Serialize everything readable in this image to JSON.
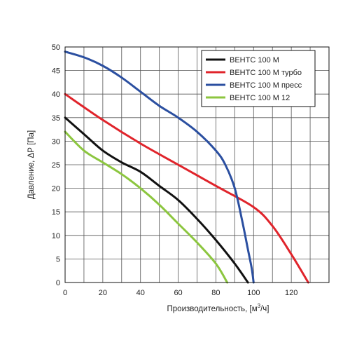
{
  "chart_data": {
    "type": "line",
    "xlabel": "Производительность, [м",
    "xlabel_sup": "3",
    "xlabel_tail": "/ч]",
    "ylabel": "Давление, ΔР [Па]",
    "xlim": [
      0,
      140
    ],
    "ylim": [
      0,
      50
    ],
    "x_ticks": [
      "0",
      "20",
      "40",
      "60",
      "80",
      "100",
      "120"
    ],
    "y_ticks": [
      "0",
      "5",
      "10",
      "15",
      "20",
      "25",
      "30",
      "35",
      "40",
      "45",
      "50"
    ],
    "grid": true,
    "legend_position": "top-right",
    "series": [
      {
        "name": "ВЕНТС 100 М",
        "color": "#111111",
        "points": [
          [
            0,
            35
          ],
          [
            10,
            31.5
          ],
          [
            20,
            28
          ],
          [
            30,
            25.5
          ],
          [
            40,
            23.5
          ],
          [
            50,
            20.5
          ],
          [
            60,
            17.5
          ],
          [
            70,
            13.5
          ],
          [
            80,
            9
          ],
          [
            90,
            4
          ],
          [
            97,
            0
          ]
        ]
      },
      {
        "name": "ВЕНТС 100 М турбо",
        "color": "#e0242b",
        "points": [
          [
            0,
            40
          ],
          [
            20,
            34.5
          ],
          [
            40,
            29.5
          ],
          [
            60,
            25
          ],
          [
            80,
            20.5
          ],
          [
            100,
            16
          ],
          [
            110,
            12
          ],
          [
            120,
            6
          ],
          [
            129,
            0
          ]
        ]
      },
      {
        "name": "ВЕНТС 100 М пресс",
        "color": "#2b4fa0",
        "points": [
          [
            0,
            49
          ],
          [
            10,
            47.8
          ],
          [
            20,
            46
          ],
          [
            30,
            43.5
          ],
          [
            40,
            40.5
          ],
          [
            50,
            37.5
          ],
          [
            60,
            35
          ],
          [
            70,
            32
          ],
          [
            80,
            28
          ],
          [
            85,
            25
          ],
          [
            90,
            20
          ],
          [
            94,
            13
          ],
          [
            97,
            7
          ],
          [
            99,
            3
          ],
          [
            100,
            0
          ]
        ]
      },
      {
        "name": "ВЕНТС 100 М 12",
        "color": "#8cc63f",
        "points": [
          [
            0,
            32
          ],
          [
            10,
            28
          ],
          [
            20,
            25.5
          ],
          [
            30,
            23
          ],
          [
            40,
            20
          ],
          [
            50,
            16.5
          ],
          [
            60,
            12.5
          ],
          [
            70,
            8.5
          ],
          [
            80,
            4
          ],
          [
            86,
            0
          ]
        ]
      }
    ]
  }
}
